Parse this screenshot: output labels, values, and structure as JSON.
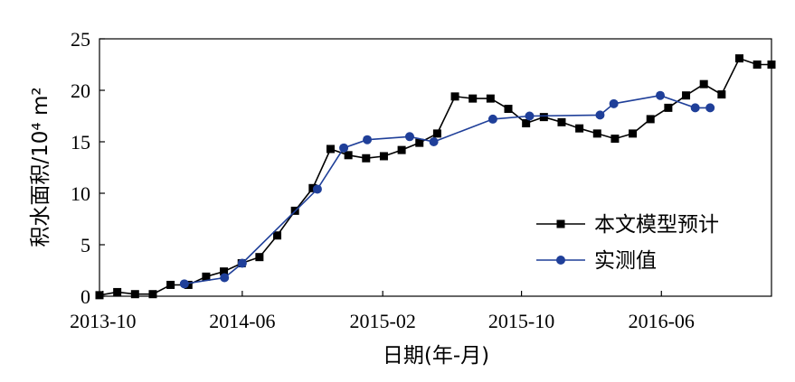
{
  "chart_data": {
    "type": "line",
    "title": "",
    "xlabel": "日期(年-月)",
    "ylabel": "积水面积/10⁴ m²",
    "ylim": [
      0,
      25
    ],
    "xlim": [
      "2013-09-25",
      "2016-12-10"
    ],
    "x_ticks": [
      "2013-10",
      "2014-06",
      "2015-02",
      "2015-10",
      "2016-06"
    ],
    "y_ticks": [
      0,
      5,
      10,
      15,
      20,
      25
    ],
    "grid": false,
    "legend_position": "lower-right",
    "series": [
      {
        "name": "本文模型预计",
        "color": "#000000",
        "marker": "square",
        "x": [
          "2013-09-25",
          "2013-10-26",
          "2013-11-26",
          "2013-12-27",
          "2014-01-27",
          "2014-02-27",
          "2014-03-30",
          "2014-04-30",
          "2014-05-31",
          "2014-07-01",
          "2014-08-01",
          "2014-09-01",
          "2014-10-02",
          "2014-11-02",
          "2014-12-03",
          "2015-01-03",
          "2015-02-03",
          "2015-03-06",
          "2015-04-06",
          "2015-05-07",
          "2015-06-07",
          "2015-07-08",
          "2015-08-08",
          "2015-09-08",
          "2015-10-09",
          "2015-11-09",
          "2015-12-10",
          "2016-01-10",
          "2016-02-10",
          "2016-03-12",
          "2016-04-12",
          "2016-05-13",
          "2016-06-13",
          "2016-07-14",
          "2016-08-14",
          "2016-09-14",
          "2016-10-15",
          "2016-11-15",
          "2016-12-10"
        ],
        "y": [
          0.1,
          0.4,
          0.2,
          0.2,
          1.1,
          1.1,
          1.9,
          2.4,
          3.2,
          3.8,
          5.9,
          8.3,
          10.5,
          14.3,
          13.7,
          13.4,
          13.6,
          14.2,
          14.9,
          15.8,
          19.4,
          19.2,
          19.2,
          18.2,
          16.8,
          17.4,
          16.9,
          16.3,
          15.8,
          15.3,
          15.8,
          17.2,
          18.3,
          19.5,
          20.6,
          19.6,
          23.1,
          22.5,
          22.5
        ]
      },
      {
        "name": "实测值",
        "color": "#1f3f99",
        "marker": "circle",
        "x": [
          "2014-02-20",
          "2014-05-01",
          "2014-06-01",
          "2014-10-10",
          "2014-11-25",
          "2015-01-05",
          "2015-03-20",
          "2015-05-01",
          "2015-08-12",
          "2015-10-15",
          "2016-02-15",
          "2016-03-10",
          "2016-05-30",
          "2016-07-30",
          "2016-08-25"
        ],
        "y": [
          1.2,
          1.8,
          3.2,
          10.4,
          14.4,
          15.2,
          15.5,
          15.0,
          17.2,
          17.5,
          17.6,
          18.7,
          19.5,
          18.3,
          18.3
        ]
      }
    ]
  }
}
